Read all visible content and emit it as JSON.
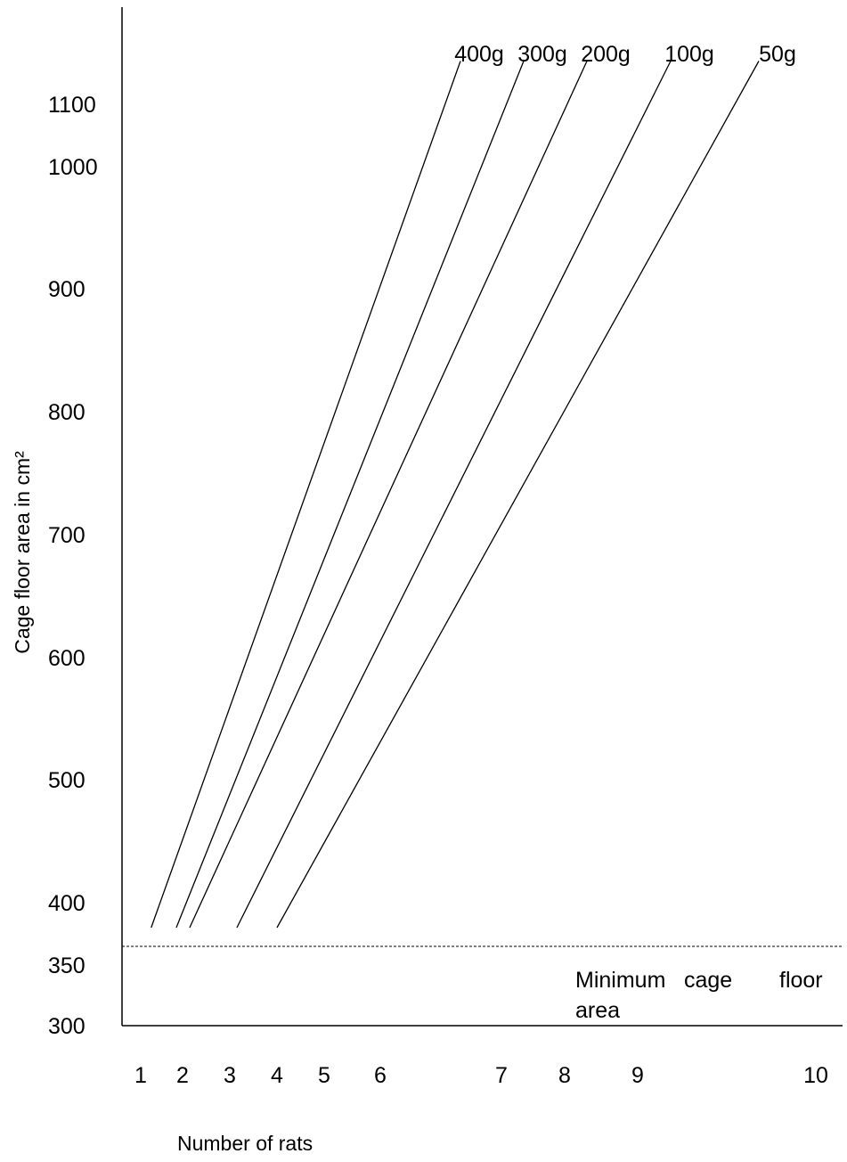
{
  "chart_data": {
    "type": "line",
    "title": "",
    "xlabel": "Number of rats",
    "ylabel": "Cage floor area in cm²",
    "x_tick_labels": [
      "1",
      "2",
      "3",
      "4",
      "5",
      "6",
      "7",
      "8",
      "9",
      "10"
    ],
    "y_tick_labels": [
      "300",
      "350",
      "400",
      "500",
      "600",
      "700",
      "800",
      "900",
      "1000",
      "1100"
    ],
    "y_tick_values": [
      300,
      350,
      400,
      500,
      600,
      700,
      800,
      900,
      1000,
      1100
    ],
    "threshold": {
      "value": 365,
      "label_line1": "Minimum cage floor",
      "label_line2": "area",
      "style": "dashed"
    },
    "series": [
      {
        "name": "400g",
        "points": [
          [
            1.25,
            380
          ],
          [
            7.0,
            1115
          ]
        ]
      },
      {
        "name": "300g",
        "points": [
          [
            1.85,
            380
          ],
          [
            8.25,
            1115
          ]
        ]
      },
      {
        "name": "200g",
        "points": [
          [
            2.15,
            380
          ],
          [
            9.45,
            1115
          ]
        ]
      },
      {
        "name": "100g",
        "points": [
          [
            3.15,
            380
          ],
          [
            11.3,
            1115
          ]
        ]
      },
      {
        "name": "50g",
        "points": [
          [
            4.0,
            380
          ],
          [
            14.0,
            1115
          ]
        ]
      }
    ],
    "grid": false,
    "legend": "labels at line ends"
  }
}
